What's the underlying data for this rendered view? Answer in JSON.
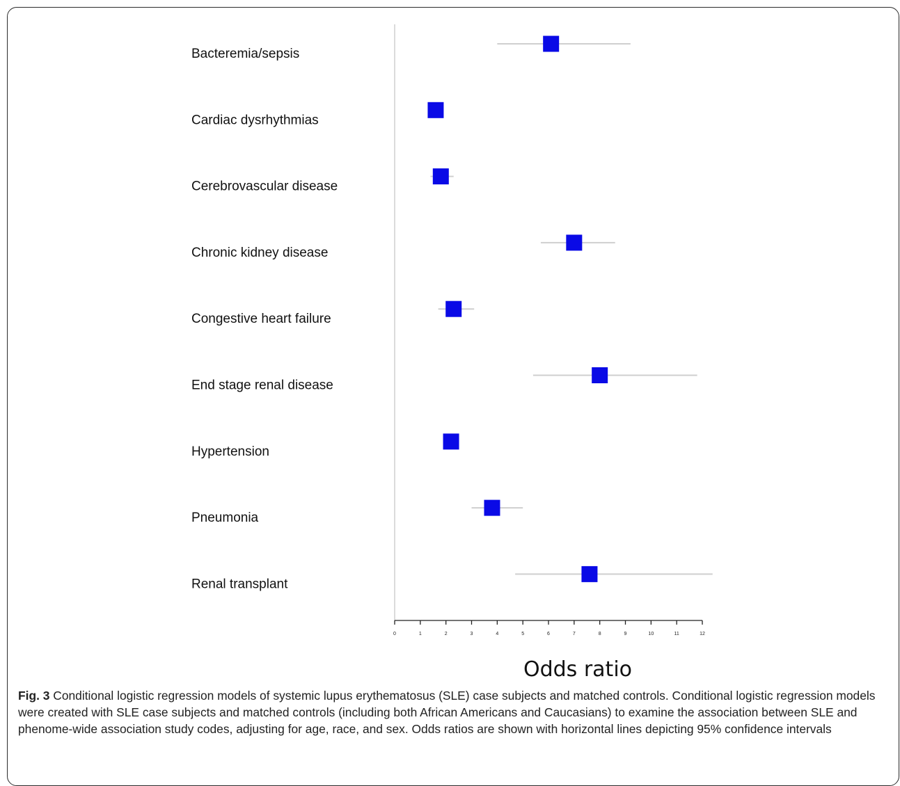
{
  "chart_data": {
    "type": "forest",
    "xlabel": "Odds ratio",
    "xlim": [
      0,
      12
    ],
    "xticks": [
      0,
      1,
      2,
      3,
      4,
      5,
      6,
      7,
      8,
      9,
      10,
      11,
      12
    ],
    "marker_color": "#0a0ae6",
    "ci_color": "#cfcfcf",
    "rows": [
      {
        "label": "Bacteremia/sepsis",
        "or": 6.1,
        "ci": [
          4.0,
          9.2
        ]
      },
      {
        "label": "Cardiac dysrhythmias",
        "or": 1.6,
        "ci": [
          1.3,
          1.9
        ]
      },
      {
        "label": "Cerebrovascular disease",
        "or": 1.8,
        "ci": [
          1.4,
          2.3
        ]
      },
      {
        "label": "Chronic kidney disease",
        "or": 7.0,
        "ci": [
          5.7,
          8.6
        ]
      },
      {
        "label": "Congestive heart failure",
        "or": 2.3,
        "ci": [
          1.7,
          3.1
        ]
      },
      {
        "label": "End stage renal disease",
        "or": 8.0,
        "ci": [
          5.4,
          11.8
        ]
      },
      {
        "label": "Hypertension",
        "or": 2.2,
        "ci": [
          1.9,
          2.5
        ]
      },
      {
        "label": "Pneumonia",
        "or": 3.8,
        "ci": [
          3.0,
          5.0
        ]
      },
      {
        "label": "Renal transplant",
        "or": 7.6,
        "ci": [
          4.7,
          12.4
        ]
      }
    ]
  },
  "caption": {
    "fig_label": "Fig. 3",
    "text": "Conditional logistic regression models of systemic lupus erythematosus (SLE) case subjects and matched controls. Conditional logistic regression models were created with SLE case subjects and matched controls (including both African Americans and Caucasians) to examine the association between SLE and phenome-wide association study codes, adjusting for age, race, and sex. Odds ratios are shown with horizontal lines depicting 95% confidence intervals"
  }
}
